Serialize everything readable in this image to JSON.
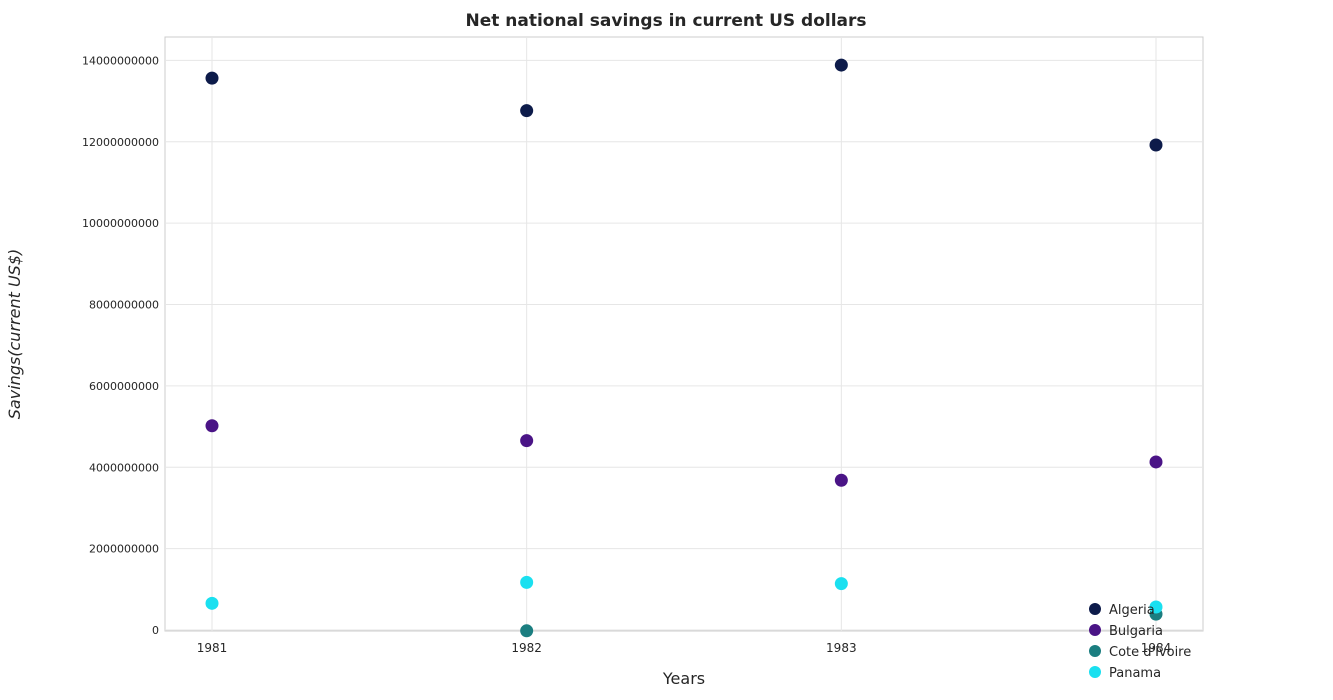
{
  "chart_data": {
    "type": "scatter",
    "title": "Net national savings in current US dollars",
    "xlabel": "Years",
    "ylabel": "Savings(current US$)",
    "categories": [
      "1981",
      "1982",
      "1983",
      "1984"
    ],
    "ylim": [
      0,
      14600000000
    ],
    "yticks": [
      0,
      2000000000,
      4000000000,
      6000000000,
      8000000000,
      10000000000,
      12000000000,
      14000000000
    ],
    "ytick_labels": [
      "0",
      "2000000000",
      "4000000000",
      "6000000000",
      "8000000000",
      "10000000000",
      "12000000000",
      "14000000000"
    ],
    "grid": true,
    "legend_position": "bottom-right",
    "series": [
      {
        "name": "Algeria",
        "color": "#0d1b4a",
        "values": [
          13590000000,
          12790000000,
          13910000000,
          11945000000
        ]
      },
      {
        "name": "Bulgaria",
        "color": "#4a1486",
        "values": [
          5045000000,
          4680000000,
          3705000000,
          4155000000
        ]
      },
      {
        "name": "Cote d'Ivoire",
        "color": "#1b7e80",
        "values": [
          null,
          5000000,
          null,
          415000000
        ]
      },
      {
        "name": "Panama",
        "color": "#1ae0f0",
        "values": [
          680000000,
          1195000000,
          1165000000,
          590000000
        ]
      }
    ]
  }
}
